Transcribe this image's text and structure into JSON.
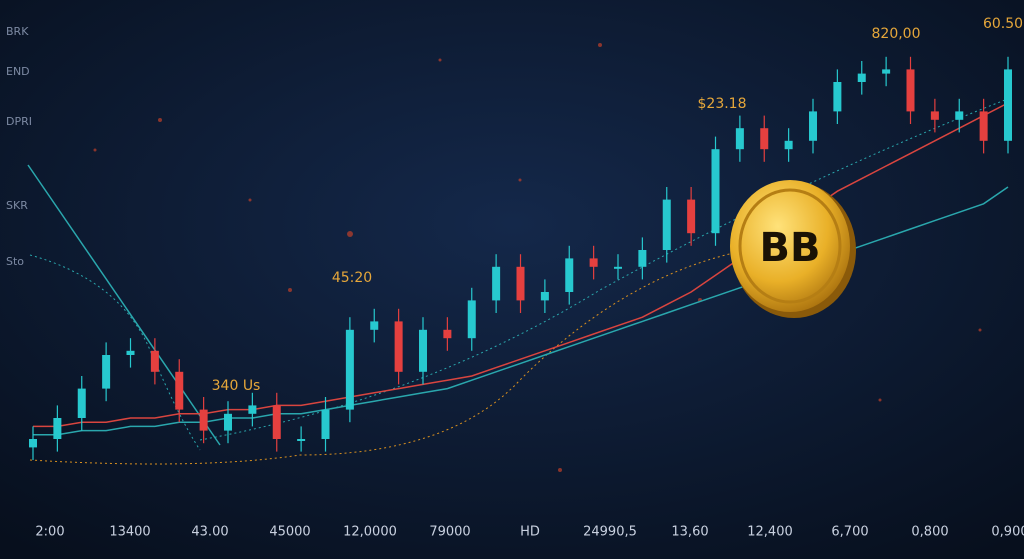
{
  "chart_data": {
    "type": "candlestick",
    "side_labels": [
      "BRK",
      "END",
      "DPRI",
      "SKR",
      "Sto"
    ],
    "x_labels": [
      "2:00",
      "13400",
      "43.00",
      "45000",
      "12,0000",
      "79000",
      "HD",
      "24990,5",
      "13,60",
      "12,400",
      "6,700",
      "0,800",
      "0,900"
    ],
    "annotations": [
      "820,00",
      "60.50",
      "$23.18",
      "45:20",
      "340 Us"
    ],
    "coin_text": "BB",
    "ylim": [
      0,
      100
    ],
    "up_color": "#27c9cf",
    "down_color": "#e5403f",
    "open": [
      3,
      5,
      10,
      17,
      25,
      26,
      21,
      12,
      7,
      11,
      13,
      5,
      5,
      12,
      31,
      33,
      21,
      31,
      29,
      38,
      46,
      38,
      40,
      48,
      46,
      46,
      50,
      62,
      54,
      74,
      79,
      74,
      76,
      83,
      90,
      92,
      93,
      83,
      81,
      83,
      76
    ],
    "high": [
      8,
      13,
      20,
      28,
      29,
      29,
      24,
      15,
      14,
      16,
      16,
      8,
      15,
      34,
      36,
      36,
      34,
      34,
      41,
      49,
      49,
      43,
      51,
      51,
      49,
      53,
      65,
      65,
      77,
      82,
      82,
      79,
      86,
      93,
      95,
      96,
      96,
      86,
      86,
      86,
      96
    ],
    "low": [
      0,
      2,
      7,
      14,
      22,
      18,
      9,
      4,
      4,
      8,
      2,
      2,
      2,
      9,
      28,
      18,
      18,
      26,
      26,
      35,
      35,
      35,
      37,
      43,
      43,
      43,
      47,
      51,
      51,
      71,
      71,
      71,
      73,
      80,
      87,
      89,
      80,
      78,
      78,
      73,
      73
    ],
    "close": [
      5,
      10,
      17,
      25,
      26,
      21,
      12,
      7,
      11,
      13,
      5,
      5,
      12,
      31,
      33,
      21,
      31,
      29,
      38,
      46,
      38,
      40,
      48,
      46,
      46,
      50,
      62,
      54,
      74,
      79,
      74,
      76,
      83,
      90,
      92,
      93,
      83,
      81,
      83,
      76,
      93
    ],
    "series": [
      {
        "color": "#d9453f",
        "values": [
          8,
          8,
          9,
          9,
          10,
          10,
          11,
          11,
          12,
          12,
          13,
          13,
          14,
          15,
          16,
          17,
          18,
          19,
          20,
          22,
          24,
          26,
          28,
          30,
          32,
          34,
          37,
          40,
          44,
          48,
          52,
          56,
          60,
          64,
          67,
          70,
          73,
          76,
          79,
          82,
          85
        ]
      },
      {
        "color": "#2aa7ad",
        "values": [
          6,
          6,
          7,
          7,
          8,
          8,
          9,
          9,
          10,
          10,
          11,
          11,
          12,
          13,
          14,
          15,
          16,
          17,
          19,
          21,
          23,
          25,
          27,
          29,
          31,
          33,
          35,
          37,
          39,
          41,
          43,
          45,
          47,
          49,
          51,
          53,
          55,
          57,
          59,
          61,
          65
        ]
      }
    ]
  }
}
